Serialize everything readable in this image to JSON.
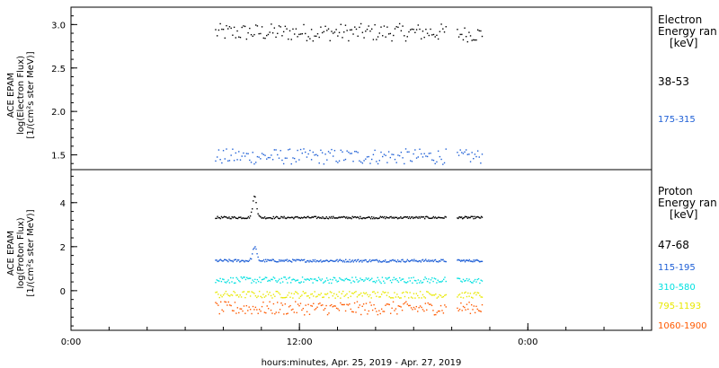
{
  "chart_data": [
    {
      "type": "scatter",
      "ylabel": [
        "ACE EPAM",
        "log(Electron Flux)",
        "[1/(cm²s ster MeV)]"
      ],
      "ylim": [
        1.33,
        3.2
      ],
      "yticks": [
        1.5,
        2.0,
        2.5,
        3.0
      ],
      "yticklabels": [
        "1.5",
        "2.0",
        "2.5",
        "3.0"
      ],
      "legend_title": [
        "Electron",
        "Energy ran",
        "[keV]"
      ],
      "series": [
        {
          "name": "38-53",
          "color": "#000000",
          "segments": [
            {
              "x_start": 7.6,
              "x_end": 19.7,
              "y_mean": 2.91,
              "spread": 0.1,
              "n": 150
            },
            {
              "x_start": 20.3,
              "x_end": 21.6,
              "y_mean": 2.89,
              "spread": 0.09,
              "n": 18
            }
          ]
        },
        {
          "name": "175-315",
          "color": "#1e5fd6",
          "segments": [
            {
              "x_start": 7.6,
              "x_end": 19.7,
              "y_mean": 1.48,
              "spread": 0.09,
              "n": 150
            },
            {
              "x_start": 20.3,
              "x_end": 21.6,
              "y_mean": 1.48,
              "spread": 0.08,
              "n": 18
            }
          ]
        }
      ]
    },
    {
      "type": "scatter",
      "ylabel": [
        "ACE EPAM",
        "log(Proton Flux)",
        "[1/(cm²s ster MeV)]"
      ],
      "ylim": [
        -1.8,
        5.5
      ],
      "yticks": [
        0,
        2,
        4
      ],
      "yticklabels": [
        "0",
        "2",
        "4"
      ],
      "legend_title": [
        "Proton",
        "Energy ran",
        "[keV]"
      ],
      "series": [
        {
          "name": "47-68",
          "color": "#000000",
          "peak_x": 9.65,
          "peak_y": 4.3,
          "segments": [
            {
              "x_start": 7.6,
              "x_end": 19.7,
              "y_mean": 3.32,
              "spread": 0.05,
              "n": 240
            },
            {
              "x_start": 20.3,
              "x_end": 21.6,
              "y_mean": 3.32,
              "spread": 0.05,
              "n": 30
            }
          ]
        },
        {
          "name": "115-195",
          "color": "#1e5fd6",
          "peak_x": 9.65,
          "peak_y": 2.0,
          "segments": [
            {
              "x_start": 7.6,
              "x_end": 19.7,
              "y_mean": 1.36,
              "spread": 0.06,
              "n": 240
            },
            {
              "x_start": 20.3,
              "x_end": 21.6,
              "y_mean": 1.36,
              "spread": 0.05,
              "n": 30
            }
          ]
        },
        {
          "name": "310-580",
          "color": "#00e0e0",
          "segments": [
            {
              "x_start": 7.6,
              "x_end": 19.7,
              "y_mean": 0.48,
              "spread": 0.14,
              "n": 200
            },
            {
              "x_start": 20.3,
              "x_end": 21.6,
              "y_mean": 0.45,
              "spread": 0.12,
              "n": 22
            }
          ]
        },
        {
          "name": "795-1193",
          "color": "#e8e800",
          "segments": [
            {
              "x_start": 7.6,
              "x_end": 19.7,
              "y_mean": -0.18,
              "spread": 0.16,
              "n": 180
            },
            {
              "x_start": 20.3,
              "x_end": 21.6,
              "y_mean": -0.2,
              "spread": 0.14,
              "n": 22
            }
          ]
        },
        {
          "name": "1060-1900",
          "color": "#ff5a00",
          "segments": [
            {
              "x_start": 7.6,
              "x_end": 19.7,
              "y_mean": -0.8,
              "spread": 0.3,
              "n": 180
            },
            {
              "x_start": 20.3,
              "x_end": 21.6,
              "y_mean": -0.78,
              "spread": 0.26,
              "n": 22
            }
          ]
        }
      ]
    }
  ],
  "xaxis": {
    "label": "hours:minutes, Apr. 25, 2019 - Apr. 27, 2019",
    "xlim": [
      0,
      30.5
    ],
    "ticks": [
      0,
      12,
      24
    ],
    "ticklabels": [
      "0:00",
      "12:00",
      "0:00"
    ],
    "minor_step": 2
  },
  "colors": {
    "axes": "#000000",
    "background": "#ffffff"
  }
}
